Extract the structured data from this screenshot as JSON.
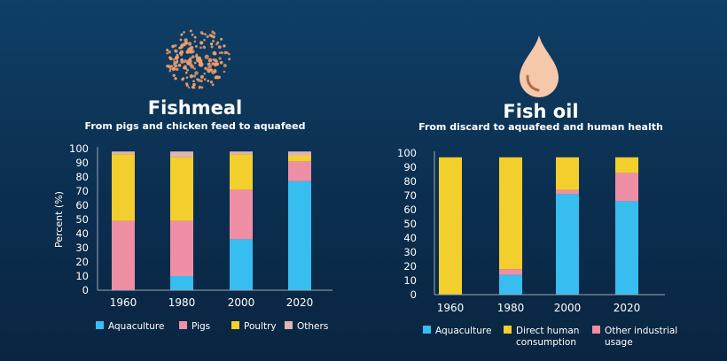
{
  "colors": {
    "Aquaculture": "#38bdf0",
    "Pigs": "#ee8fa6",
    "Poultry": "#f2cf2c",
    "Others": "#e0b4b0",
    "Direct human consumption": "#f2cf2c",
    "Other industrial usage": "#ee8fa6",
    "axis": "#9aa7b4",
    "fishmeal_dots": "#f0a070",
    "oil_drop": "#f6c8aa"
  },
  "chart_data": [
    {
      "type": "bar",
      "stacked": true,
      "title": "Fishmeal",
      "subtitle": "From pigs and chicken feed to aquafeed",
      "ylabel": "Percent (%)",
      "xlabel": "",
      "ylim": [
        0,
        100
      ],
      "yticks": [
        0,
        10,
        20,
        30,
        40,
        50,
        60,
        70,
        80,
        90,
        100
      ],
      "categories": [
        "1960",
        "1980",
        "2000",
        "2020"
      ],
      "series": [
        {
          "name": "Aquaculture",
          "values": [
            0,
            10,
            36,
            77
          ]
        },
        {
          "name": "Pigs",
          "values": [
            49,
            39,
            35,
            14
          ]
        },
        {
          "name": "Poultry",
          "values": [
            47,
            45,
            25,
            4
          ]
        },
        {
          "name": "Others",
          "values": [
            2,
            4,
            2,
            3
          ]
        }
      ],
      "legend": [
        "Aquaculture",
        "Pigs",
        "Poultry",
        "Others"
      ],
      "legend_position": "bottom"
    },
    {
      "type": "bar",
      "stacked": true,
      "title": "Fish oil",
      "subtitle": "From discard to aquafeed and human health",
      "ylabel": "",
      "xlabel": "",
      "ylim": [
        0,
        100
      ],
      "yticks": [
        0,
        10,
        20,
        30,
        40,
        50,
        60,
        70,
        80,
        90,
        100
      ],
      "categories": [
        "1960",
        "1980",
        "2000",
        "2020"
      ],
      "series": [
        {
          "name": "Aquaculture",
          "values": [
            0,
            14,
            71,
            66
          ]
        },
        {
          "name": "Other industrial usage",
          "values": [
            0,
            4,
            3,
            20
          ]
        },
        {
          "name": "Direct human consumption",
          "values": [
            97,
            79,
            23,
            11
          ]
        }
      ],
      "legend": [
        {
          "name": "Aquaculture",
          "lines": [
            "Aquaculture"
          ]
        },
        {
          "name": "Direct human consumption",
          "lines": [
            "Direct human",
            "consumption"
          ]
        },
        {
          "name": "Other industrial usage",
          "lines": [
            "Other industrial",
            "usage"
          ]
        }
      ],
      "legend_position": "bottom"
    }
  ]
}
